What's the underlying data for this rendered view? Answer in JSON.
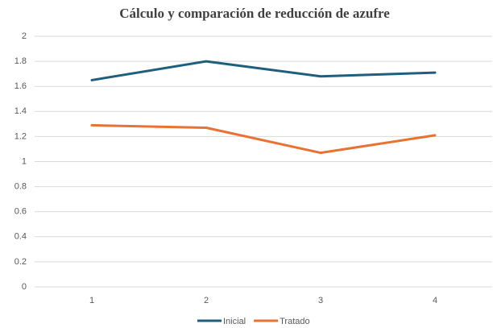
{
  "chart_data": {
    "type": "line",
    "title": "Cálculo y comparación de reducción de azufre",
    "categories": [
      "1",
      "2",
      "3",
      "4"
    ],
    "series": [
      {
        "name": "Inicial",
        "color": "#1f5f7e",
        "values": [
          1.65,
          1.8,
          1.68,
          1.71
        ]
      },
      {
        "name": "Tratado",
        "color": "#e97132",
        "values": [
          1.29,
          1.27,
          1.07,
          1.21
        ]
      }
    ],
    "ylim": [
      0,
      2
    ],
    "yticks": [
      0,
      0.2,
      0.4,
      0.6,
      0.8,
      1,
      1.2,
      1.4,
      1.6,
      1.8,
      2
    ],
    "grid": true,
    "legend": "bottom"
  }
}
